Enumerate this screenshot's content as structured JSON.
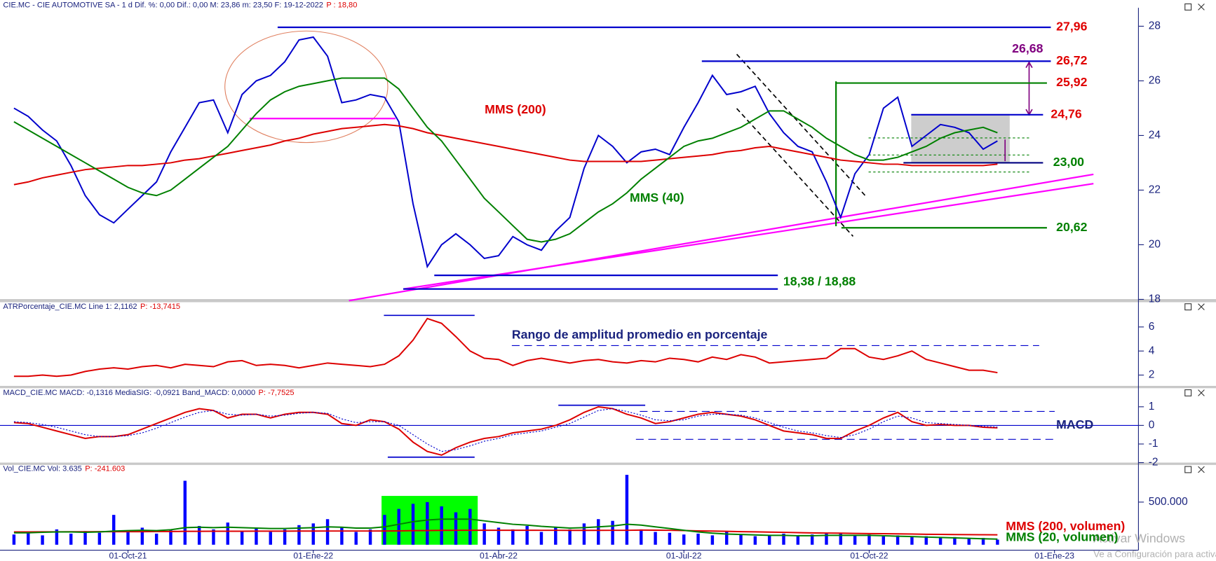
{
  "chart_data": [
    {
      "type": "line",
      "header": "CIE.MC - CIE AUTOMOTIVE SA - 1 d Dif. %: 0,00 Dif.: 0,00 M: 23,86 m: 23,50 F: 19-12-2022",
      "header_p": "P : 18,80",
      "ylim": [
        18.01,
        28.96
      ],
      "yticks": [
        18,
        20,
        22,
        24,
        26,
        28
      ],
      "series": [
        {
          "color": "#0000cc",
          "values": [
            25.0,
            24.7,
            24.2,
            23.8,
            22.9,
            21.8,
            21.1,
            20.8,
            21.3,
            21.8,
            22.3,
            23.4,
            24.3,
            25.2,
            25.3,
            24.1,
            25.5,
            26.0,
            26.2,
            26.7,
            27.5,
            27.6,
            26.9,
            25.2,
            25.3,
            25.5,
            25.4,
            24.5,
            21.5,
            19.2,
            20.0,
            20.4,
            20.0,
            19.5,
            19.6,
            20.3,
            20.0,
            19.8,
            20.5,
            21.0,
            22.8,
            24.0,
            23.6,
            23.0,
            23.4,
            23.5,
            23.3,
            24.3,
            25.2,
            26.2,
            25.5,
            25.6,
            25.8,
            24.8,
            24.1,
            23.6,
            23.4,
            22.3,
            21.0,
            22.6,
            23.3,
            25.0,
            25.4,
            23.6,
            24.0,
            24.4,
            24.3,
            24.1,
            23.5,
            23.8,
            null,
            null,
            null,
            null,
            null,
            null,
            null,
            null,
            null
          ]
        },
        {
          "name": "MMS (200)",
          "color": "#dd0000",
          "values": [
            22.2,
            22.3,
            22.45,
            22.55,
            22.65,
            22.75,
            22.8,
            22.85,
            22.9,
            22.9,
            22.95,
            23.0,
            23.1,
            23.15,
            23.25,
            23.35,
            23.45,
            23.55,
            23.65,
            23.8,
            23.9,
            24.05,
            24.15,
            24.25,
            24.3,
            24.35,
            24.4,
            24.35,
            24.25,
            24.1,
            24.0,
            23.9,
            23.8,
            23.7,
            23.6,
            23.5,
            23.4,
            23.3,
            23.2,
            23.1,
            23.05,
            23.05,
            23.05,
            23.05,
            23.05,
            23.1,
            23.15,
            23.2,
            23.25,
            23.3,
            23.4,
            23.45,
            23.55,
            23.6,
            23.5,
            23.4,
            23.3,
            23.2,
            23.1,
            23.05,
            23.0,
            22.95,
            22.95,
            22.9,
            22.9,
            22.9,
            22.9,
            22.9,
            22.9,
            22.95,
            null,
            null,
            null,
            null,
            null,
            null,
            null,
            null,
            null
          ]
        },
        {
          "name": "MMS (40)",
          "color": "#008000",
          "values": [
            24.5,
            24.2,
            23.9,
            23.6,
            23.3,
            23.0,
            22.7,
            22.4,
            22.1,
            21.9,
            21.8,
            22.0,
            22.4,
            22.8,
            23.2,
            23.6,
            24.2,
            24.8,
            25.3,
            25.6,
            25.8,
            25.9,
            26.0,
            26.1,
            26.1,
            26.1,
            26.1,
            25.7,
            25.0,
            24.3,
            23.8,
            23.1,
            22.4,
            21.7,
            21.2,
            20.7,
            20.2,
            20.1,
            20.2,
            20.4,
            20.8,
            21.2,
            21.5,
            21.9,
            22.4,
            22.8,
            23.2,
            23.6,
            23.8,
            23.9,
            24.1,
            24.3,
            24.6,
            24.9,
            24.9,
            24.6,
            24.3,
            23.9,
            23.6,
            23.3,
            23.1,
            23.1,
            23.2,
            23.4,
            23.6,
            23.9,
            24.1,
            24.2,
            24.3,
            24.1,
            null,
            null,
            null,
            null,
            null,
            null,
            null,
            null,
            null
          ]
        }
      ],
      "levels": [
        {
          "value": 27.96,
          "label": "27,96",
          "label_color": "#e00000",
          "line_color": "#0000cc"
        },
        {
          "value": 26.68,
          "label": "26,68",
          "label_color": "#800080",
          "line_color": "#800080"
        },
        {
          "value": 26.72,
          "label": "26,72",
          "label_color": "#e00000",
          "line_color": "#0000cc"
        },
        {
          "value": 25.92,
          "label": "25,92",
          "label_color": "#e00000",
          "line_color": "#008000"
        },
        {
          "value": 24.76,
          "label": "24,76",
          "label_color": "#e00000",
          "line_color": "#0000cc"
        },
        {
          "value": 23.0,
          "label": "23,00",
          "label_color": "#008000",
          "line_color": "#000080"
        },
        {
          "value": 20.62,
          "label": "20,62",
          "label_color": "#008000",
          "line_color": "#008000"
        }
      ],
      "level_pair": {
        "values": [
          18.38,
          18.88
        ],
        "label": "18,38 / 18,88",
        "label_color": "#008000",
        "line_color": "#0000cc"
      }
    },
    {
      "type": "line",
      "header": "ATRPorcentaje_CIE.MC Line 1: 2,1162",
      "header_p": "P: -13,7415",
      "ylim": [
        1.1,
        8.06
      ],
      "yticks": [
        2,
        4,
        6
      ],
      "series": [
        {
          "name": "Rango de amplitud promedio en porcentaje",
          "color": "#dd0000",
          "values": [
            1.9,
            1.9,
            2.0,
            1.9,
            2.0,
            2.3,
            2.5,
            2.6,
            2.5,
            2.7,
            2.8,
            2.6,
            2.9,
            2.8,
            2.7,
            3.1,
            3.2,
            2.8,
            2.9,
            2.8,
            2.6,
            2.8,
            3.0,
            2.9,
            2.8,
            2.7,
            2.9,
            3.6,
            4.9,
            6.7,
            6.3,
            5.2,
            4.0,
            3.4,
            3.3,
            2.8,
            3.2,
            3.4,
            3.2,
            3.0,
            3.2,
            3.3,
            3.1,
            3.0,
            3.2,
            3.1,
            3.4,
            3.3,
            3.1,
            3.5,
            3.3,
            3.7,
            3.5,
            3.0,
            3.1,
            3.2,
            3.3,
            3.4,
            4.2,
            4.2,
            3.5,
            3.3,
            3.6,
            4.0,
            3.3,
            3.0,
            2.7,
            2.4,
            2.4,
            2.2,
            null,
            null,
            null,
            null,
            null,
            null,
            null,
            null,
            null
          ]
        }
      ]
    },
    {
      "type": "line",
      "header": "MACD_CIE.MC MACD: -0,1316 MediaSIG: -0,0921 Band_MACD: 0,0000",
      "header_p": "P: -7,7525",
      "ylim": [
        -2.04,
        2.04
      ],
      "yticks": [
        -2,
        -1,
        0,
        1
      ],
      "series": [
        {
          "name": "MACD",
          "color": "#dd0000",
          "values": [
            0.15,
            0.1,
            -0.1,
            -0.3,
            -0.5,
            -0.7,
            -0.6,
            -0.6,
            -0.5,
            -0.2,
            0.1,
            0.4,
            0.7,
            0.9,
            0.8,
            0.4,
            0.6,
            0.6,
            0.4,
            0.6,
            0.7,
            0.7,
            0.6,
            0.1,
            0.0,
            0.3,
            0.2,
            -0.2,
            -0.9,
            -1.4,
            -1.6,
            -1.2,
            -0.9,
            -0.7,
            -0.6,
            -0.4,
            -0.3,
            -0.2,
            0.0,
            0.3,
            0.7,
            1.0,
            0.9,
            0.6,
            0.4,
            0.1,
            0.2,
            0.4,
            0.6,
            0.7,
            0.6,
            0.5,
            0.3,
            0.0,
            -0.3,
            -0.4,
            -0.5,
            -0.7,
            -0.7,
            -0.3,
            0.0,
            0.4,
            0.7,
            0.2,
            0.0,
            0.05,
            0.0,
            0.0,
            -0.1,
            -0.13,
            null,
            null,
            null,
            null,
            null,
            null,
            null,
            null,
            null
          ]
        },
        {
          "color": "#0000cc",
          "dash": true,
          "values": [
            0.2,
            0.15,
            0.05,
            -0.1,
            -0.3,
            -0.5,
            -0.6,
            -0.6,
            -0.55,
            -0.4,
            -0.15,
            0.15,
            0.45,
            0.7,
            0.8,
            0.6,
            0.55,
            0.6,
            0.5,
            0.55,
            0.65,
            0.7,
            0.65,
            0.35,
            0.15,
            0.2,
            0.2,
            0.0,
            -0.5,
            -1.0,
            -1.4,
            -1.3,
            -1.1,
            -0.85,
            -0.7,
            -0.5,
            -0.4,
            -0.3,
            -0.1,
            0.1,
            0.45,
            0.8,
            0.9,
            0.75,
            0.55,
            0.3,
            0.25,
            0.3,
            0.5,
            0.6,
            0.6,
            0.55,
            0.4,
            0.15,
            -0.1,
            -0.3,
            -0.4,
            -0.55,
            -0.65,
            -0.5,
            -0.2,
            0.2,
            0.5,
            0.4,
            0.15,
            0.1,
            0.05,
            0.0,
            -0.05,
            -0.09,
            null,
            null,
            null,
            null,
            null,
            null,
            null,
            null,
            null
          ]
        }
      ]
    },
    {
      "type": "bar",
      "header": "Vol_CIE.MC Vol: 3.635",
      "header_p": "P: -241.603",
      "ylim": [
        0,
        827000
      ],
      "yticks": [
        {
          "value": 500000,
          "label": "500.000"
        }
      ],
      "categories": [
        null,
        null,
        null,
        null,
        null,
        null,
        null,
        null,
        "01-Oct-21",
        null,
        null,
        null,
        null,
        null,
        null,
        null,
        null,
        null,
        null,
        null,
        null,
        "01-Ene-22",
        null,
        null,
        null,
        null,
        null,
        null,
        null,
        null,
        null,
        null,
        null,
        null,
        "01-Abr-22",
        null,
        null,
        null,
        null,
        null,
        null,
        null,
        null,
        null,
        null,
        null,
        null,
        "01-Jul-22",
        null,
        null,
        null,
        null,
        null,
        null,
        null,
        null,
        null,
        null,
        null,
        null,
        "01-Oct-22",
        null,
        null,
        null,
        null,
        null,
        null,
        null,
        null,
        null,
        null,
        null,
        null,
        "01-Ene-23",
        null,
        null,
        null,
        null,
        null
      ],
      "series": [
        {
          "color": "#0000ff",
          "values": [
            120000,
            150000,
            110000,
            180000,
            130000,
            160000,
            140000,
            350000,
            150000,
            200000,
            130000,
            170000,
            750000,
            220000,
            180000,
            260000,
            160000,
            200000,
            150000,
            180000,
            230000,
            250000,
            300000,
            200000,
            150000,
            180000,
            350000,
            420000,
            480000,
            500000,
            450000,
            380000,
            420000,
            250000,
            200000,
            180000,
            220000,
            150000,
            200000,
            180000,
            250000,
            300000,
            280000,
            820000,
            180000,
            150000,
            140000,
            120000,
            130000,
            110000,
            150000,
            120000,
            100000,
            110000,
            130000,
            100000,
            120000,
            140000,
            130000,
            110000,
            120000,
            100000,
            110000,
            90000,
            100000,
            80000,
            90000,
            70000,
            80000,
            60000,
            null,
            null,
            null,
            null,
            null,
            null,
            null,
            null,
            null
          ]
        },
        {
          "name": "MMS (200, volumen)",
          "type": "line",
          "color": "#dd0000",
          "values": [
            150000,
            150000,
            151000,
            151000,
            152000,
            152000,
            153000,
            153000,
            154000,
            154000,
            155000,
            155000,
            157000,
            157000,
            158000,
            158000,
            158000,
            159000,
            159000,
            159000,
            160000,
            160000,
            161000,
            161000,
            161000,
            161000,
            162000,
            163000,
            165000,
            166000,
            168000,
            169000,
            170000,
            170000,
            170000,
            170000,
            170000,
            169000,
            169000,
            168000,
            168000,
            168000,
            169000,
            169000,
            172000,
            171000,
            169000,
            166000,
            163000,
            160000,
            157000,
            154000,
            151000,
            148000,
            145000,
            142000,
            139000,
            137000,
            135000,
            133000,
            131000,
            129000,
            127000,
            125000,
            123000,
            121000,
            119000,
            118000,
            117000,
            116000,
            null,
            null,
            null,
            null,
            null,
            null,
            null,
            null,
            null
          ]
        },
        {
          "name": "MMS (20, volumen)",
          "type": "line",
          "color": "#008000",
          "values": [
            140000,
            140000,
            145000,
            150000,
            150000,
            145000,
            150000,
            160000,
            165000,
            170000,
            165000,
            175000,
            200000,
            205000,
            200000,
            205000,
            200000,
            195000,
            190000,
            190000,
            195000,
            200000,
            210000,
            205000,
            195000,
            195000,
            210000,
            240000,
            270000,
            290000,
            300000,
            300000,
            300000,
            280000,
            260000,
            240000,
            230000,
            215000,
            205000,
            195000,
            200000,
            210000,
            220000,
            240000,
            230000,
            210000,
            190000,
            170000,
            150000,
            135000,
            125000,
            120000,
            115000,
            110000,
            110000,
            105000,
            105000,
            110000,
            110000,
            110000,
            110000,
            105000,
            100000,
            95000,
            90000,
            85000,
            80000,
            75000,
            70000,
            65000,
            null,
            null,
            null,
            null,
            null,
            null,
            null,
            null,
            null
          ]
        }
      ]
    }
  ],
  "overlay": {
    "line1": "Activar Windows",
    "line2": "Ve a Configuración para activar Windows."
  }
}
